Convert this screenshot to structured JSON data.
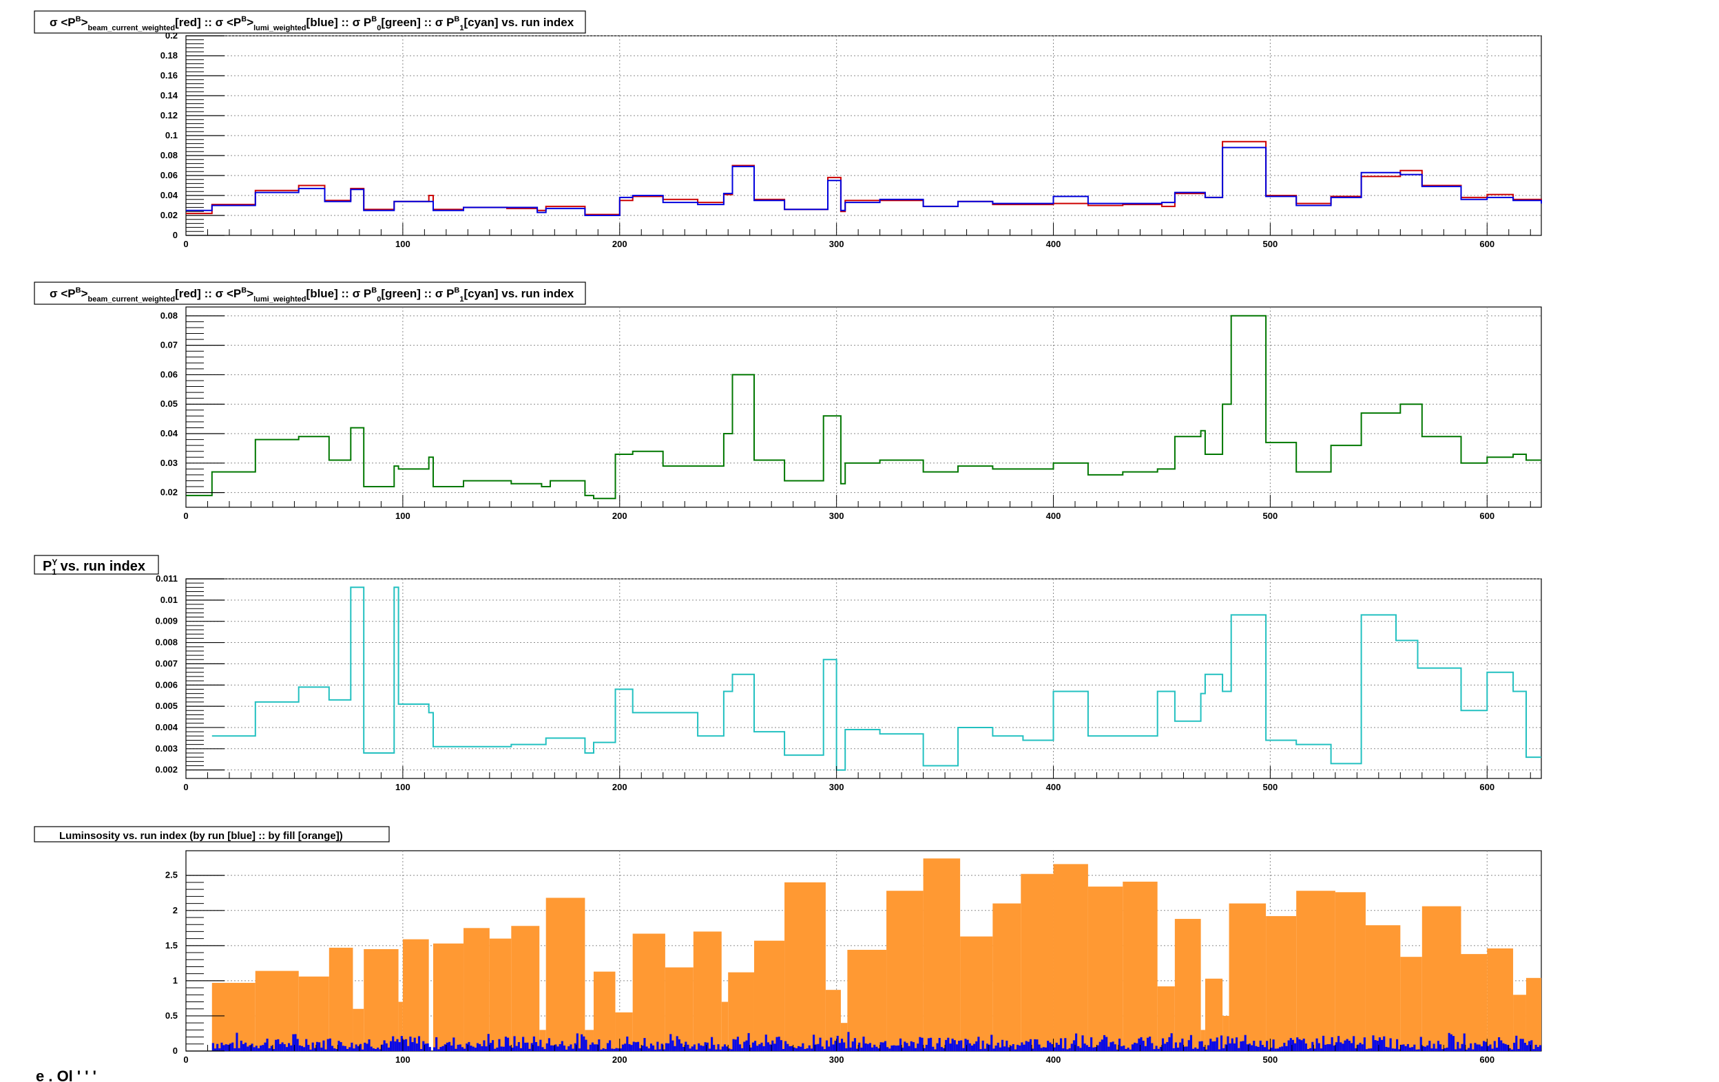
{
  "canvas": {
    "background": "#ffffff"
  },
  "chart_data": [
    {
      "type": "line",
      "title": "σ <P^B>_beam_current_weighted[red] :: σ <P^B>_lumi_weighted[blue] :: σ P^B_0[green] :: σ P^B_1[cyan] vs. run index",
      "title_parts": [
        "σ <P",
        "B",
        ">",
        "beam_current_weighted",
        "[red] :: σ <P",
        "B",
        ">",
        "lumi_weighted",
        "[blue] :: σ P",
        "B",
        "0",
        "[green] :: σ P",
        "B",
        "1",
        "[cyan] vs. run index"
      ],
      "xlim": [
        0,
        625
      ],
      "ylim": [
        0,
        0.2
      ],
      "xticks": [
        0,
        100,
        200,
        300,
        400,
        500,
        600
      ],
      "yticks": [
        0,
        0.02,
        0.04,
        0.06,
        0.08,
        0.1,
        0.12,
        0.14,
        0.16,
        0.18,
        0.2
      ],
      "xtick_labels": [
        "0",
        "100",
        "200",
        "300",
        "400",
        "500",
        "600"
      ],
      "ytick_labels": [
        "0",
        "0.02",
        "0.04",
        "0.06",
        "0.08",
        "0.1",
        "0.12",
        "0.14",
        "0.16",
        "0.18",
        "0.2"
      ],
      "grid": true,
      "series": [
        {
          "color": "#cc0000",
          "x": [
            0,
            12,
            32,
            52,
            64,
            76,
            82,
            96,
            112,
            114,
            128,
            148,
            162,
            166,
            184,
            200,
            206,
            220,
            236,
            248,
            252,
            262,
            276,
            296,
            302,
            304,
            320,
            340,
            356,
            372,
            400,
            416,
            432,
            450,
            456,
            470,
            478,
            498,
            512,
            528,
            542,
            560,
            570,
            588,
            600,
            612,
            625
          ],
          "y": [
            0.022,
            0.031,
            0.045,
            0.05,
            0.035,
            0.047,
            0.026,
            0.034,
            0.04,
            0.026,
            0.028,
            0.027,
            0.025,
            0.029,
            0.021,
            0.035,
            0.039,
            0.036,
            0.033,
            0.041,
            0.07,
            0.036,
            0.026,
            0.058,
            0.024,
            0.035,
            0.035,
            0.029,
            0.034,
            0.031,
            0.032,
            0.03,
            0.031,
            0.029,
            0.042,
            0.038,
            0.094,
            0.04,
            0.032,
            0.039,
            0.059,
            0.065,
            0.05,
            0.038,
            0.041,
            0.036,
            0.033
          ]
        },
        {
          "color": "#0000dd",
          "x": [
            0,
            12,
            32,
            52,
            64,
            76,
            82,
            96,
            112,
            114,
            128,
            148,
            162,
            166,
            184,
            200,
            206,
            220,
            236,
            248,
            252,
            262,
            276,
            296,
            302,
            304,
            320,
            340,
            356,
            372,
            400,
            416,
            432,
            450,
            456,
            470,
            478,
            498,
            512,
            528,
            542,
            560,
            570,
            588,
            600,
            612,
            625
          ],
          "y": [
            0.025,
            0.03,
            0.043,
            0.047,
            0.034,
            0.046,
            0.025,
            0.034,
            0.034,
            0.025,
            0.028,
            0.028,
            0.023,
            0.027,
            0.02,
            0.038,
            0.04,
            0.033,
            0.031,
            0.042,
            0.069,
            0.035,
            0.026,
            0.055,
            0.025,
            0.033,
            0.036,
            0.029,
            0.034,
            0.032,
            0.039,
            0.032,
            0.032,
            0.033,
            0.043,
            0.038,
            0.088,
            0.039,
            0.03,
            0.038,
            0.063,
            0.061,
            0.049,
            0.036,
            0.038,
            0.035,
            0.032
          ]
        }
      ]
    },
    {
      "type": "line",
      "title": "σ <P^B>_beam_current_weighted[red] :: σ <P^B>_lumi_weighted[blue] :: σ P^B_0[green] :: σ P^B_1[cyan] vs. run index",
      "title_parts": [
        "σ <P",
        "B",
        ">",
        "beam_current_weighted",
        "[red] :: σ <P",
        "B",
        ">",
        "lumi_weighted",
        "[blue] :: σ P",
        "B",
        "0",
        "[green] :: σ P",
        "B",
        "1",
        "[cyan] vs. run index"
      ],
      "xlim": [
        0,
        625
      ],
      "ylim": [
        0.015,
        0.083
      ],
      "xticks": [
        0,
        100,
        200,
        300,
        400,
        500,
        600
      ],
      "yticks": [
        0.02,
        0.03,
        0.04,
        0.05,
        0.06,
        0.07,
        0.08
      ],
      "xtick_labels": [
        "0",
        "100",
        "200",
        "300",
        "400",
        "500",
        "600"
      ],
      "ytick_labels": [
        "0.02",
        "0.03",
        "0.04",
        "0.05",
        "0.06",
        "0.07",
        "0.08"
      ],
      "grid": true,
      "series": [
        {
          "color": "#007700",
          "x": [
            0,
            12,
            32,
            52,
            66,
            76,
            82,
            96,
            98,
            112,
            114,
            128,
            140,
            150,
            164,
            168,
            184,
            188,
            198,
            206,
            220,
            236,
            248,
            252,
            262,
            276,
            294,
            302,
            304,
            320,
            340,
            356,
            372,
            386,
            400,
            416,
            432,
            448,
            456,
            468,
            470,
            478,
            482,
            498,
            512,
            528,
            542,
            560,
            570,
            588,
            600,
            612,
            618,
            625
          ],
          "y": [
            0.019,
            0.027,
            0.038,
            0.039,
            0.031,
            0.042,
            0.022,
            0.029,
            0.028,
            0.032,
            0.022,
            0.024,
            0.024,
            0.023,
            0.022,
            0.024,
            0.019,
            0.018,
            0.033,
            0.034,
            0.029,
            0.029,
            0.04,
            0.06,
            0.031,
            0.024,
            0.046,
            0.023,
            0.03,
            0.031,
            0.027,
            0.029,
            0.028,
            0.028,
            0.03,
            0.026,
            0.027,
            0.028,
            0.039,
            0.041,
            0.033,
            0.05,
            0.08,
            0.037,
            0.027,
            0.036,
            0.047,
            0.05,
            0.039,
            0.03,
            0.032,
            0.033,
            0.031,
            0.031
          ]
        }
      ]
    },
    {
      "type": "line",
      "title": "P^Y_1 vs. run index",
      "title_parts": [
        "P",
        "Y",
        "1",
        " vs. run index"
      ],
      "xlim": [
        0,
        625
      ],
      "ylim": [
        0.0016,
        0.011
      ],
      "xticks": [
        0,
        100,
        200,
        300,
        400,
        500,
        600
      ],
      "yticks": [
        0.002,
        0.003,
        0.004,
        0.005,
        0.006,
        0.007,
        0.008,
        0.009,
        0.01,
        0.011
      ],
      "xtick_labels": [
        "0",
        "100",
        "200",
        "300",
        "400",
        "500",
        "600"
      ],
      "ytick_labels": [
        "0.002",
        "0.003",
        "0.004",
        "0.005",
        "0.006",
        "0.007",
        "0.008",
        "0.009",
        "0.01",
        "0.011"
      ],
      "grid": true,
      "series": [
        {
          "color": "#22c0c0",
          "x": [
            12,
            32,
            52,
            66,
            76,
            82,
            96,
            98,
            112,
            114,
            150,
            166,
            184,
            188,
            198,
            206,
            236,
            248,
            252,
            262,
            276,
            294,
            300,
            304,
            320,
            340,
            356,
            372,
            386,
            400,
            416,
            448,
            456,
            468,
            470,
            478,
            482,
            498,
            512,
            528,
            542,
            558,
            568,
            588,
            600,
            612,
            618,
            625
          ],
          "y": [
            0.0036,
            0.0052,
            0.0059,
            0.0053,
            0.0106,
            0.0028,
            0.0106,
            0.0051,
            0.0047,
            0.0031,
            0.0032,
            0.0035,
            0.0028,
            0.0033,
            0.0058,
            0.0047,
            0.0036,
            0.0057,
            0.0065,
            0.0038,
            0.0027,
            0.0072,
            0.002,
            0.0039,
            0.0037,
            0.0022,
            0.004,
            0.0036,
            0.0034,
            0.0057,
            0.0036,
            0.0057,
            0.0043,
            0.0056,
            0.0065,
            0.0057,
            0.0093,
            0.0034,
            0.0032,
            0.0023,
            0.0093,
            0.0081,
            0.0068,
            0.0048,
            0.0066,
            0.0057,
            0.0026,
            0.0026
          ]
        }
      ]
    },
    {
      "type": "bar",
      "title": "Luminsosity vs. run index (by run [blue] :: by fill [orange])",
      "xlim": [
        0,
        625
      ],
      "ylim": [
        0,
        2.85
      ],
      "xticks": [
        0,
        100,
        200,
        300,
        400,
        500,
        600
      ],
      "yticks": [
        0,
        0.5,
        1,
        1.5,
        2,
        2.5
      ],
      "xtick_labels": [
        "0",
        "100",
        "200",
        "300",
        "400",
        "500",
        "600"
      ],
      "ytick_labels": [
        "0",
        "0.5",
        "1",
        "1.5",
        "2",
        "2.5"
      ],
      "grid": true,
      "fill_color": "#ff9933",
      "run_color": "#0a0ae6",
      "fills": [
        [
          12,
          32,
          0.97
        ],
        [
          32,
          52,
          1.14
        ],
        [
          52,
          66,
          1.06
        ],
        [
          66,
          77,
          1.47
        ],
        [
          77,
          82,
          0.6
        ],
        [
          82,
          98,
          1.45
        ],
        [
          98,
          100,
          0.7
        ],
        [
          100,
          112,
          1.59
        ],
        [
          114,
          128,
          1.53
        ],
        [
          128,
          140,
          1.75
        ],
        [
          140,
          150,
          1.6
        ],
        [
          150,
          163,
          1.78
        ],
        [
          163,
          166,
          0.3
        ],
        [
          166,
          184,
          2.18
        ],
        [
          184,
          188,
          0.3
        ],
        [
          188,
          198,
          1.13
        ],
        [
          198,
          206,
          0.55
        ],
        [
          206,
          221,
          1.67
        ],
        [
          221,
          234,
          1.19
        ],
        [
          234,
          247,
          1.7
        ],
        [
          247,
          250,
          0.7
        ],
        [
          250,
          262,
          1.12
        ],
        [
          262,
          276,
          1.57
        ],
        [
          276,
          295,
          2.4
        ],
        [
          295,
          302,
          0.87
        ],
        [
          302,
          305,
          0.4
        ],
        [
          305,
          323,
          1.44
        ],
        [
          323,
          340,
          2.28
        ],
        [
          340,
          357,
          2.74
        ],
        [
          357,
          372,
          1.63
        ],
        [
          372,
          385,
          2.1
        ],
        [
          385,
          400,
          2.52
        ],
        [
          400,
          416,
          2.66
        ],
        [
          416,
          432,
          2.34
        ],
        [
          432,
          448,
          2.41
        ],
        [
          448,
          456,
          0.92
        ],
        [
          456,
          468,
          1.88
        ],
        [
          468,
          470,
          0.3
        ],
        [
          470,
          478,
          1.03
        ],
        [
          478,
          481,
          0.5
        ],
        [
          481,
          498,
          2.1
        ],
        [
          498,
          512,
          1.92
        ],
        [
          512,
          530,
          2.28
        ],
        [
          530,
          544,
          2.26
        ],
        [
          544,
          560,
          1.79
        ],
        [
          560,
          570,
          1.34
        ],
        [
          570,
          588,
          2.06
        ],
        [
          588,
          600,
          1.38
        ],
        [
          600,
          612,
          1.46
        ],
        [
          612,
          618,
          0.8
        ],
        [
          618,
          625,
          1.04
        ]
      ],
      "run_values_min": 0.02,
      "run_values_max": 0.28
    }
  ],
  "footer_text": "е . Ol ' ' '"
}
